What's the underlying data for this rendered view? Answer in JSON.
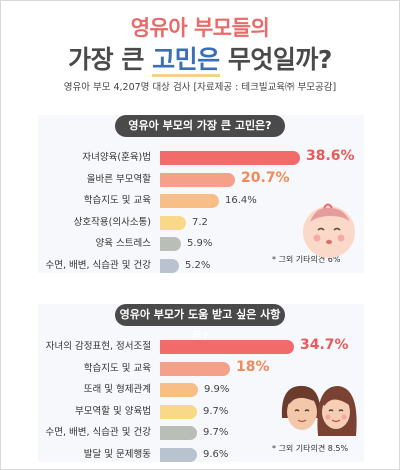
{
  "header": {
    "title_line1": "영유아 부모들의",
    "title_line2_pre": "가장 큰 ",
    "title_line2_hl": "고민은",
    "title_line2_post": " 무엇일까?",
    "subtitle": "영유아 부모 4,207명 대상 검사 [자료제공 : 테크빌교육㈜ 부모공감]"
  },
  "chart_data": [
    {
      "type": "bar",
      "orientation": "horizontal",
      "title": "영유아 부모의 가장 큰 고민은?",
      "categories": [
        "자녀양육(훈육)법",
        "올바른 부모역할",
        "학습지도 및 교육",
        "상호작용(의사소통)",
        "양육 스트레스",
        "수면, 배변, 식습관 및 건강"
      ],
      "values": [
        38.6,
        20.7,
        16.4,
        7.2,
        5.9,
        5.2
      ],
      "value_labels": [
        "38.6%",
        "20.7%",
        "16.4%",
        "7.2",
        "5.9%",
        "5.2%"
      ],
      "colors": [
        "#f26b6b",
        "#f5a088",
        "#f8be85",
        "#f9d888",
        "#b9bfb7",
        "#b8c3cf"
      ],
      "value_colors": [
        "#ea5a5a",
        "#f08a5a",
        "#444444",
        "#444444",
        "#444444",
        "#444444"
      ],
      "note": "* 그외 기타의견 6%"
    },
    {
      "type": "bar",
      "orientation": "horizontal",
      "title": "영유아 부모가 도움 받고 싶은 사항은?",
      "categories": [
        "자녀의 감정표현, 정서조절",
        "학습지도 및 교육",
        "또래 및 형제관계",
        "부모역할 및 양육법",
        "수면, 배변, 식습관 및 건강",
        "발달 및 문제행동"
      ],
      "values": [
        34.7,
        18,
        9.9,
        9.7,
        9.7,
        9.6
      ],
      "value_labels": [
        "34.7%",
        "18%",
        "9.9%",
        "9.7%",
        "9.7%",
        "9.6%"
      ],
      "colors": [
        "#f26b6b",
        "#f5a088",
        "#f8be85",
        "#f9d888",
        "#b9bfb7",
        "#b8c3cf"
      ],
      "value_colors": [
        "#ea5a5a",
        "#f08a5a",
        "#444444",
        "#444444",
        "#444444",
        "#444444"
      ],
      "note": "* 그외 기타의견 8.5%"
    }
  ]
}
